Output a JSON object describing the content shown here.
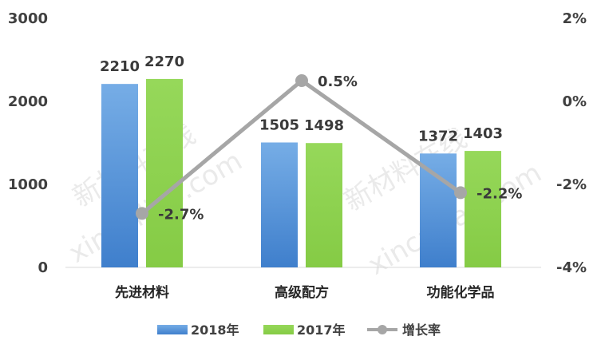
{
  "chart_data": {
    "type": "bar",
    "categories": [
      "先进材料",
      "高级配方",
      "功能化学品"
    ],
    "series": [
      {
        "name": "2018年",
        "type": "bar",
        "axis": "left",
        "values": [
          2210,
          1505,
          1372
        ],
        "color": "#4f8fd6"
      },
      {
        "name": "2017年",
        "type": "bar",
        "axis": "left",
        "values": [
          2270,
          1498,
          1403
        ],
        "color": "#8dd150"
      },
      {
        "name": "增长率",
        "type": "line",
        "axis": "right",
        "values": [
          -2.7,
          0.5,
          -2.2
        ],
        "labels": [
          "-2.7%",
          "0.5%",
          "-2.2%"
        ],
        "color": "#a6a6a6"
      }
    ],
    "y_left": {
      "min": 0,
      "max": 3000,
      "ticks": [
        "0",
        "1000",
        "2000",
        "3000"
      ]
    },
    "y_right": {
      "min": -4,
      "max": 2,
      "ticks": [
        "-4%",
        "-2%",
        "0%",
        "2%"
      ]
    },
    "grid": false,
    "legend_position": "bottom",
    "watermark": [
      "新材料在线",
      "xincailiao.com"
    ]
  }
}
